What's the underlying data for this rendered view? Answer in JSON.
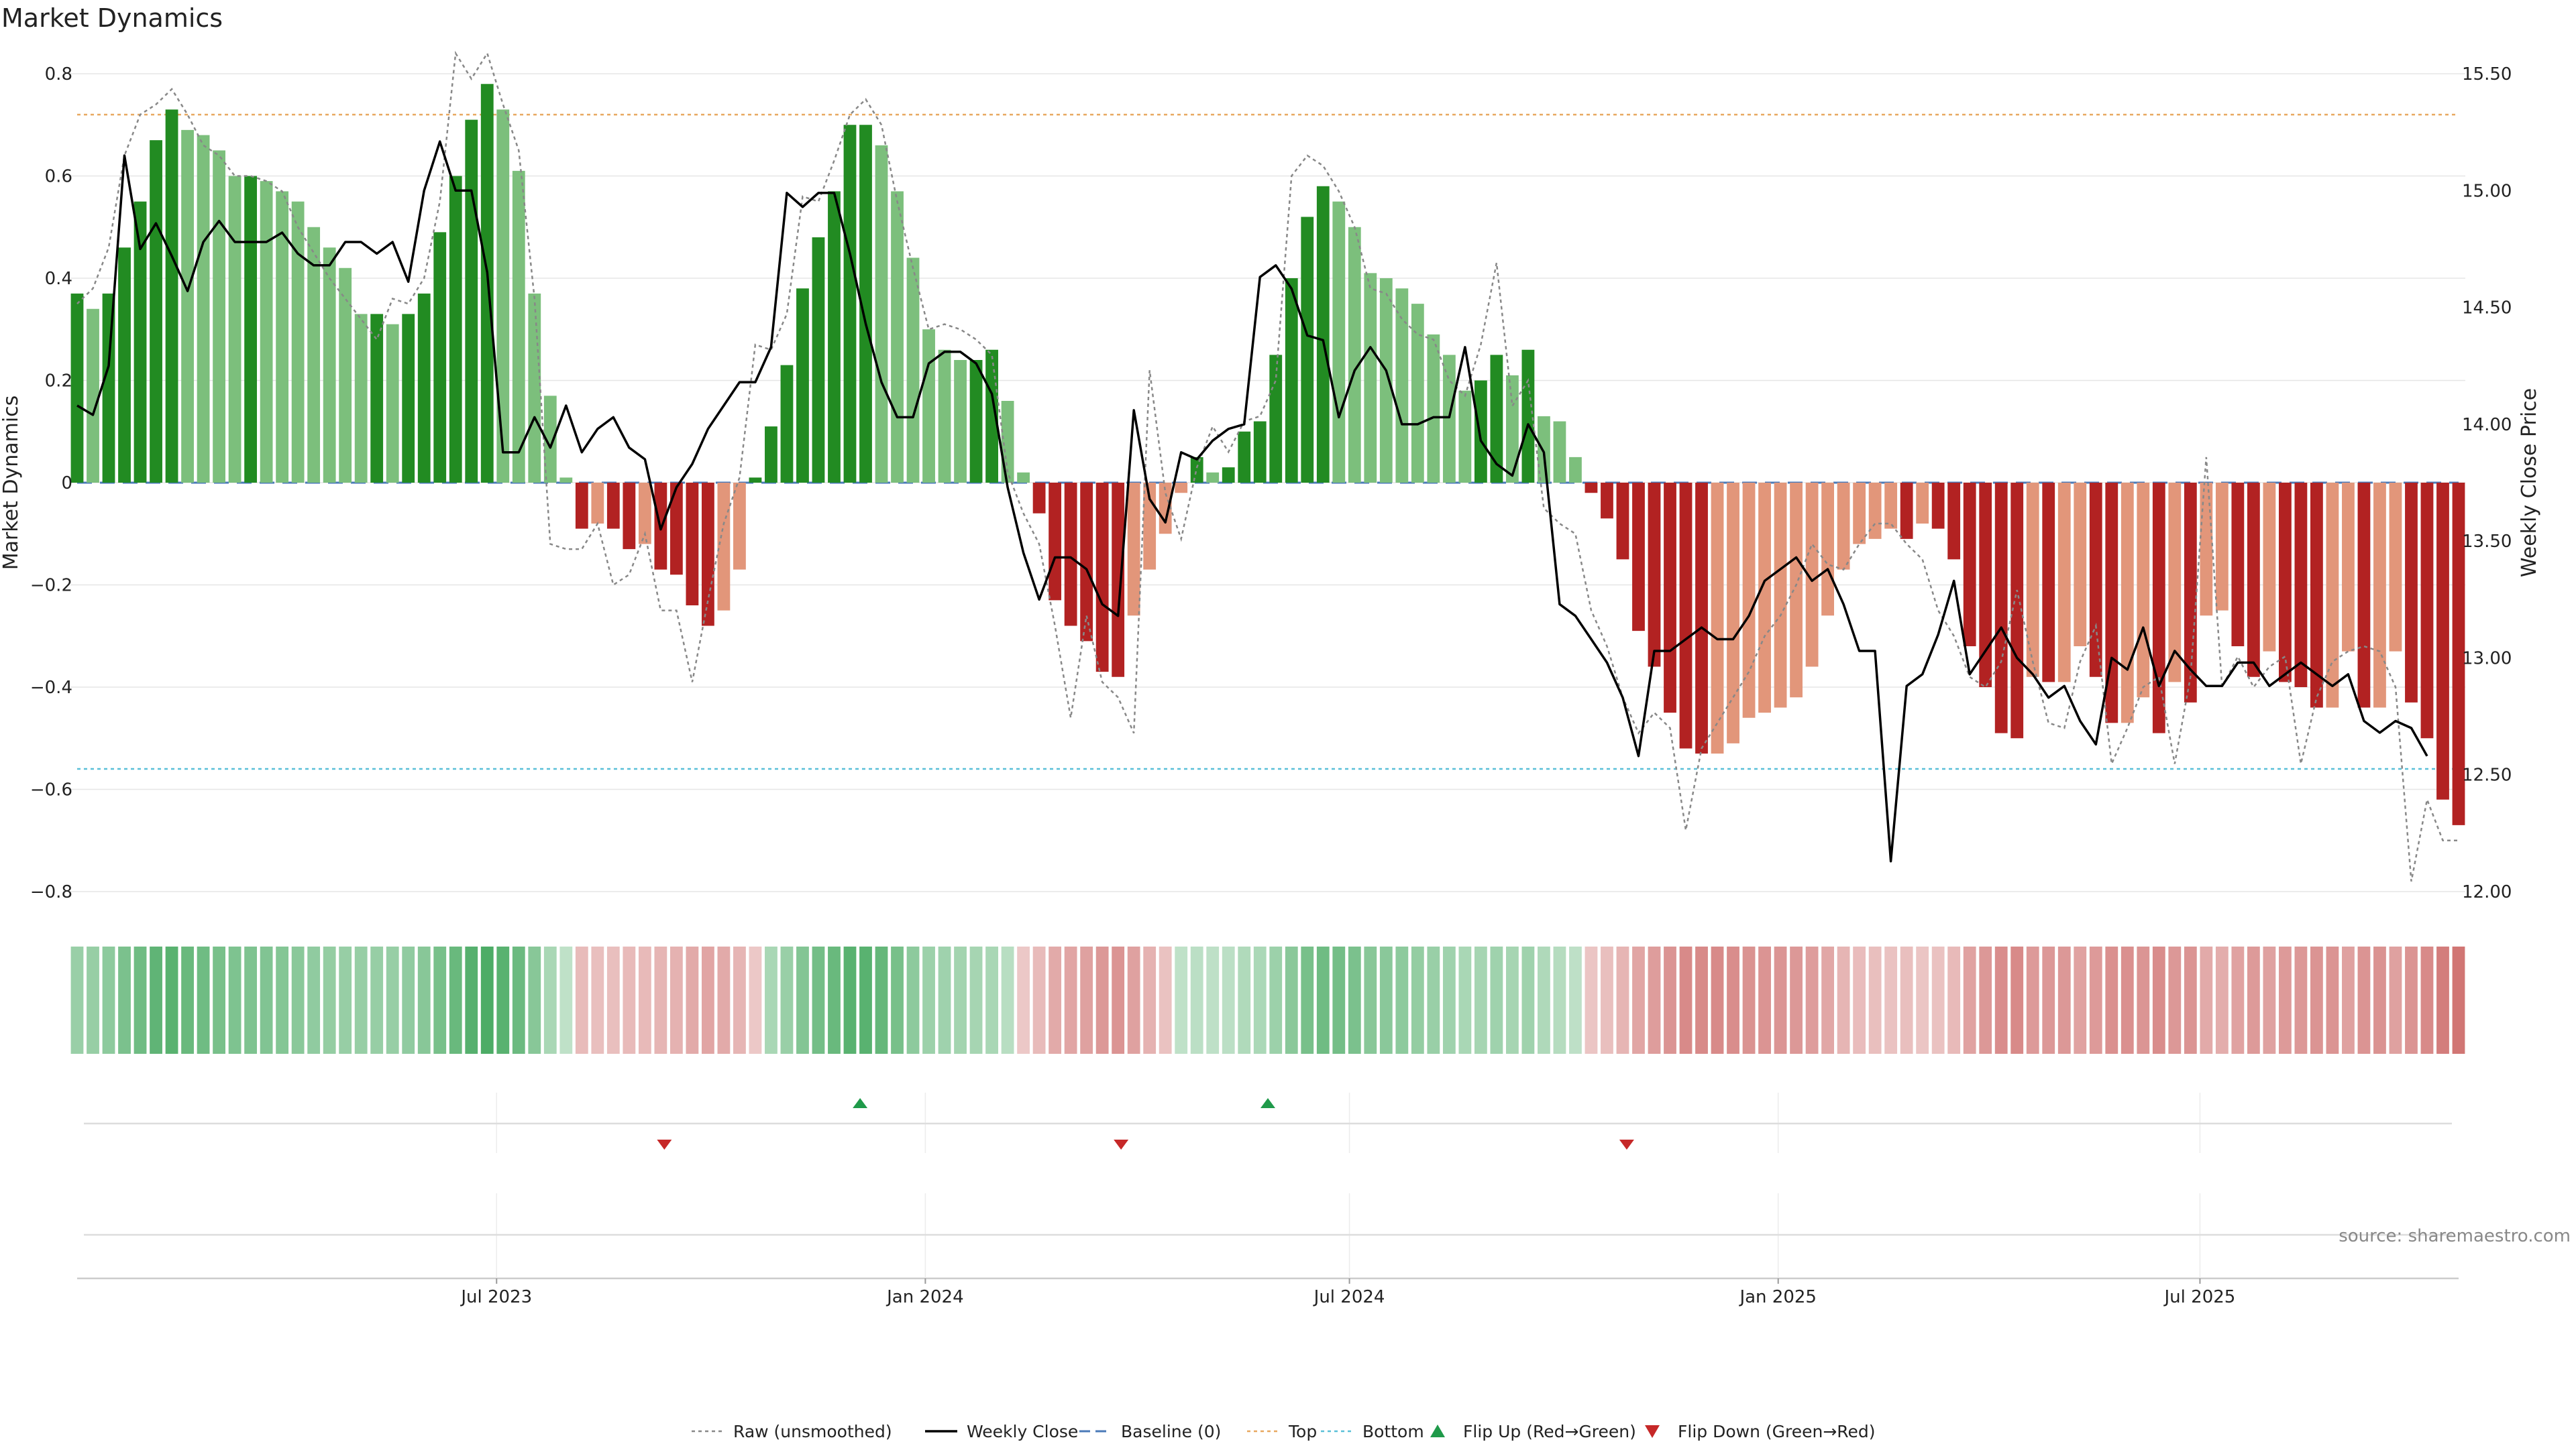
{
  "chart_data": {
    "type": "bar",
    "title": "Market Dynamics",
    "ylabel": "Market Dynamics",
    "y2label": "Weekly Close Price",
    "ylim": [
      -0.85,
      0.82
    ],
    "y2lim": [
      11.9,
      15.65
    ],
    "yticks": [
      0.8,
      0.6,
      0.4,
      0.2,
      0,
      -0.2,
      -0.4,
      -0.6,
      -0.8
    ],
    "ytick_labels": [
      "0.8",
      "0.6",
      "0.4",
      "0.2",
      "0",
      "−0.2",
      "−0.4",
      "−0.6",
      "−0.8"
    ],
    "y2ticks": [
      15.5,
      15.0,
      14.5,
      14.0,
      13.5,
      13.0,
      12.5,
      12.0
    ],
    "y2tick_labels": [
      "15.50",
      "15.00",
      "14.50",
      "14.00",
      "13.50",
      "13.00",
      "12.50",
      "12.00"
    ],
    "x_start": "2023-01-02",
    "x_end": "2025-10-20",
    "xticks": [
      {
        "label": "Jul 2023",
        "date": "2023-07-01"
      },
      {
        "label": "Jan 2024",
        "date": "2024-01-01"
      },
      {
        "label": "Jul 2024",
        "date": "2024-07-01"
      },
      {
        "label": "Jan 2025",
        "date": "2025-01-01"
      },
      {
        "label": "Jul 2025",
        "date": "2025-07-01"
      }
    ],
    "top_threshold": 0.72,
    "bottom_threshold": -0.56,
    "baseline": 0,
    "series": [
      {
        "name": "Market Dynamics",
        "values": [
          0.37,
          0.34,
          0.37,
          0.46,
          0.55,
          0.67,
          0.73,
          0.69,
          0.68,
          0.65,
          0.6,
          0.6,
          0.59,
          0.57,
          0.55,
          0.5,
          0.46,
          0.42,
          0.33,
          0.33,
          0.31,
          0.33,
          0.37,
          0.49,
          0.6,
          0.71,
          0.78,
          0.73,
          0.61,
          0.37,
          0.17,
          0.01,
          -0.09,
          -0.08,
          -0.09,
          -0.13,
          -0.12,
          -0.17,
          -0.18,
          -0.24,
          -0.28,
          -0.25,
          -0.17,
          0.01,
          0.11,
          0.23,
          0.38,
          0.48,
          0.57,
          0.7,
          0.7,
          0.66,
          0.57,
          0.44,
          0.3,
          0.26,
          0.24,
          0.24,
          0.26,
          0.16,
          0.02,
          -0.06,
          -0.23,
          -0.28,
          -0.31,
          -0.37,
          -0.38,
          -0.26,
          -0.17,
          -0.1,
          -0.02,
          0.05,
          0.02,
          0.03,
          0.1,
          0.12,
          0.25,
          0.4,
          0.52,
          0.58,
          0.55,
          0.5,
          0.41,
          0.4,
          0.38,
          0.35,
          0.29,
          0.25,
          0.18,
          0.2,
          0.25,
          0.21,
          0.26,
          0.13,
          0.12,
          0.05,
          -0.02,
          -0.07,
          -0.15,
          -0.29,
          -0.36,
          -0.45,
          -0.52,
          -0.53,
          -0.53,
          -0.51,
          -0.46,
          -0.45,
          -0.44,
          -0.42,
          -0.36,
          -0.26,
          -0.17,
          -0.12,
          -0.11,
          -0.09,
          -0.11,
          -0.08,
          -0.09,
          -0.15,
          -0.32,
          -0.4,
          -0.49,
          -0.5,
          -0.38,
          -0.39,
          -0.39,
          -0.32,
          -0.38,
          -0.47,
          -0.47,
          -0.42,
          -0.49,
          -0.39,
          -0.43,
          -0.26,
          -0.25,
          -0.32,
          -0.38,
          -0.33,
          -0.39,
          -0.4,
          -0.44,
          -0.44,
          -0.33,
          -0.44,
          -0.44,
          -0.33,
          -0.43,
          -0.5,
          -0.62,
          -0.67
        ]
      },
      {
        "name": "Raw (unsmoothed)",
        "values": [
          0.35,
          0.38,
          0.46,
          0.64,
          0.72,
          0.74,
          0.77,
          0.72,
          0.66,
          0.64,
          0.6,
          0.6,
          0.59,
          0.57,
          0.5,
          0.45,
          0.4,
          0.36,
          0.32,
          0.28,
          0.36,
          0.35,
          0.4,
          0.55,
          0.84,
          0.79,
          0.84,
          0.74,
          0.65,
          0.36,
          -0.12,
          -0.13,
          -0.13,
          -0.08,
          -0.2,
          -0.18,
          -0.1,
          -0.25,
          -0.25,
          -0.39,
          -0.23,
          -0.08,
          0.01,
          0.27,
          0.26,
          0.33,
          0.56,
          0.55,
          0.63,
          0.72,
          0.75,
          0.7,
          0.55,
          0.42,
          0.3,
          0.31,
          0.3,
          0.28,
          0.25,
          0.02,
          -0.06,
          -0.12,
          -0.28,
          -0.46,
          -0.26,
          -0.39,
          -0.42,
          -0.49,
          0.22,
          -0.02,
          -0.11,
          0.03,
          0.11,
          0.06,
          0.12,
          0.13,
          0.2,
          0.6,
          0.64,
          0.62,
          0.57,
          0.5,
          0.38,
          0.37,
          0.32,
          0.29,
          0.28,
          0.2,
          0.17,
          0.27,
          0.43,
          0.15,
          0.2,
          -0.05,
          -0.08,
          -0.1,
          -0.25,
          -0.32,
          -0.42,
          -0.49,
          -0.45,
          -0.48,
          -0.68,
          -0.52,
          -0.47,
          -0.42,
          -0.37,
          -0.3,
          -0.26,
          -0.2,
          -0.12,
          -0.16,
          -0.17,
          -0.12,
          -0.08,
          -0.08,
          -0.12,
          -0.15,
          -0.25,
          -0.3,
          -0.38,
          -0.4,
          -0.35,
          -0.21,
          -0.35,
          -0.47,
          -0.48,
          -0.35,
          -0.28,
          -0.55,
          -0.48,
          -0.4,
          -0.38,
          -0.55,
          -0.38,
          0.05,
          -0.4,
          -0.34,
          -0.4,
          -0.36,
          -0.34,
          -0.55,
          -0.42,
          -0.35,
          -0.33,
          -0.32,
          -0.33,
          -0.4,
          -0.78,
          -0.62,
          -0.7,
          -0.7
        ]
      },
      {
        "name": "Weekly Close",
        "values": [
          14.08,
          14.04,
          14.25,
          15.15,
          14.75,
          14.86,
          14.72,
          14.57,
          14.78,
          14.87,
          14.78,
          14.78,
          14.78,
          14.82,
          14.73,
          14.68,
          14.68,
          14.78,
          14.78,
          14.73,
          14.78,
          14.61,
          15.0,
          15.21,
          15.0,
          15.0,
          14.65,
          13.88,
          13.88,
          14.03,
          13.9,
          14.08,
          13.88,
          13.98,
          14.03,
          13.9,
          13.85,
          13.55,
          13.73,
          13.83,
          13.98,
          14.08,
          14.18,
          14.18,
          14.33,
          14.99,
          14.93,
          14.99,
          14.99,
          14.73,
          14.43,
          14.18,
          14.03,
          14.03,
          14.26,
          14.31,
          14.31,
          14.26,
          14.13,
          13.73,
          13.45,
          13.25,
          13.43,
          13.43,
          13.38,
          13.23,
          13.18,
          14.06,
          13.68,
          13.58,
          13.88,
          13.85,
          13.93,
          13.98,
          14.0,
          14.63,
          14.68,
          14.58,
          14.38,
          14.36,
          14.03,
          14.23,
          14.33,
          14.23,
          14.0,
          14.0,
          14.03,
          14.03,
          14.33,
          13.93,
          13.83,
          13.78,
          14.0,
          13.88,
          13.23,
          13.18,
          13.08,
          12.98,
          12.83,
          12.58,
          13.03,
          13.03,
          13.08,
          13.13,
          13.08,
          13.08,
          13.18,
          13.33,
          13.38,
          13.43,
          13.33,
          13.38,
          13.23,
          13.03,
          13.03,
          12.13,
          12.88,
          12.93,
          13.1,
          13.33,
          12.93,
          13.03,
          13.13,
          13.0,
          12.93,
          12.83,
          12.88,
          12.73,
          12.63,
          13.0,
          12.95,
          13.13,
          12.88,
          13.03,
          12.95,
          12.88,
          12.88,
          12.98,
          12.98,
          12.88,
          12.93,
          12.98,
          12.93,
          12.88,
          12.93,
          12.73,
          12.68,
          12.73,
          12.7,
          12.58
        ]
      }
    ],
    "heat_strip": [
      0.4,
      0.42,
      0.48,
      0.6,
      0.68,
      0.78,
      0.82,
      0.72,
      0.68,
      0.62,
      0.58,
      0.58,
      0.56,
      0.54,
      0.5,
      0.46,
      0.44,
      0.42,
      0.42,
      0.42,
      0.42,
      0.46,
      0.52,
      0.62,
      0.72,
      0.84,
      0.9,
      0.82,
      0.7,
      0.52,
      0.3,
      0.15,
      -0.25,
      -0.22,
      -0.22,
      -0.26,
      -0.26,
      -0.3,
      -0.32,
      -0.38,
      -0.42,
      -0.38,
      -0.3,
      -0.15,
      0.3,
      0.4,
      0.55,
      0.65,
      0.72,
      0.82,
      0.82,
      0.75,
      0.62,
      0.48,
      0.38,
      0.36,
      0.34,
      0.32,
      0.3,
      0.2,
      -0.15,
      -0.25,
      -0.38,
      -0.42,
      -0.45,
      -0.52,
      -0.55,
      -0.45,
      -0.32,
      -0.2,
      0.15,
      0.18,
      0.16,
      0.18,
      0.25,
      0.28,
      0.38,
      0.5,
      0.62,
      0.68,
      0.65,
      0.6,
      0.52,
      0.5,
      0.48,
      0.44,
      0.4,
      0.36,
      0.3,
      0.32,
      0.36,
      0.32,
      0.36,
      0.26,
      0.22,
      0.16,
      -0.18,
      -0.22,
      -0.3,
      -0.42,
      -0.48,
      -0.55,
      -0.62,
      -0.62,
      -0.62,
      -0.6,
      -0.56,
      -0.55,
      -0.54,
      -0.52,
      -0.48,
      -0.4,
      -0.3,
      -0.24,
      -0.22,
      -0.2,
      -0.22,
      -0.18,
      -0.2,
      -0.26,
      -0.44,
      -0.52,
      -0.6,
      -0.62,
      -0.5,
      -0.52,
      -0.52,
      -0.44,
      -0.5,
      -0.58,
      -0.58,
      -0.54,
      -0.6,
      -0.52,
      -0.55,
      -0.38,
      -0.36,
      -0.44,
      -0.5,
      -0.45,
      -0.5,
      -0.52,
      -0.55,
      -0.55,
      -0.45,
      -0.55,
      -0.56,
      -0.45,
      -0.55,
      -0.62,
      -0.72,
      -0.78
    ],
    "flip_up": [
      {
        "date": "2023-12-04"
      },
      {
        "date": "2024-05-27"
      }
    ],
    "flip_down": [
      {
        "date": "2023-09-11"
      },
      {
        "date": "2024-03-25"
      },
      {
        "date": "2024-10-28"
      }
    ],
    "legend_placement": "bottom-center",
    "colors": {
      "strong_green": "#228b22",
      "light_green": "#7cbf7c",
      "strong_red": "#b22222",
      "light_red": "#e2967a",
      "line": "#000000",
      "raw": "#888888",
      "baseline": "#4a7ab8",
      "top": "#e8a860",
      "bottom": "#5bc0d8",
      "flip_up": "#1f9a4a",
      "flip_down": "#c62828"
    }
  },
  "legend": {
    "items": [
      {
        "key": "raw",
        "label": "Raw (unsmoothed)"
      },
      {
        "key": "close",
        "label": "Weekly Close"
      },
      {
        "key": "baseline",
        "label": "Baseline (0)"
      },
      {
        "key": "top",
        "label": "Top"
      },
      {
        "key": "bottom",
        "label": "Bottom"
      },
      {
        "key": "flip_up",
        "label": "Flip Up (Red→Green)"
      },
      {
        "key": "flip_down",
        "label": "Flip Down (Green→Red)"
      }
    ]
  },
  "source_text": "source: sharemaestro.com"
}
